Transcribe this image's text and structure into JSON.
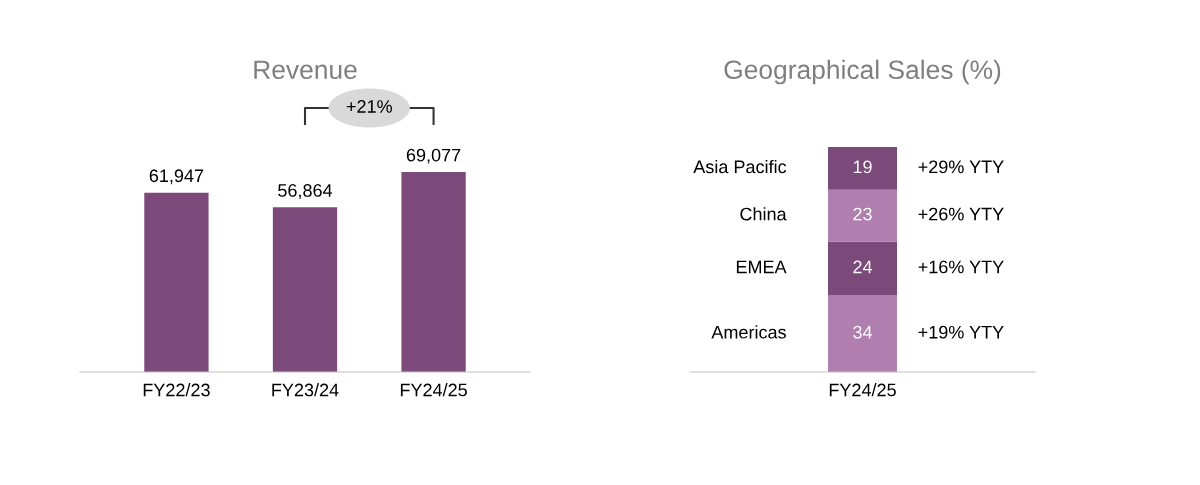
{
  "chart_data": [
    {
      "type": "bar",
      "title": "Revenue",
      "categories": [
        "FY22/23",
        "FY23/24",
        "FY24/25"
      ],
      "values": [
        61947,
        56864,
        69077
      ],
      "value_labels": [
        "61,947",
        "56,864",
        "69,077"
      ],
      "color": "#7b4a7a",
      "tick_labels": "x",
      "annotations": [
        "+21%"
      ]
    },
    {
      "type": "bar",
      "stacked": true,
      "title": "Geographical Sales (%)",
      "categories": [
        "FY24/25"
      ],
      "data_labels": true,
      "tick_labels": "x",
      "series": [
        {
          "name": "Americas",
          "color": "#b07fb0",
          "values": [
            34
          ]
        },
        {
          "name": "EMEA",
          "color": "#7b4a7a",
          "values": [
            24
          ]
        },
        {
          "name": "China",
          "color": "#b07fb0",
          "values": [
            23
          ]
        },
        {
          "name": "Asia Pacific",
          "color": "#7b4a7a",
          "values": [
            19
          ]
        }
      ],
      "annotations": [
        "+19% YTY",
        "+16% YTY",
        "+26% YTY",
        "+29% YTY"
      ]
    }
  ]
}
